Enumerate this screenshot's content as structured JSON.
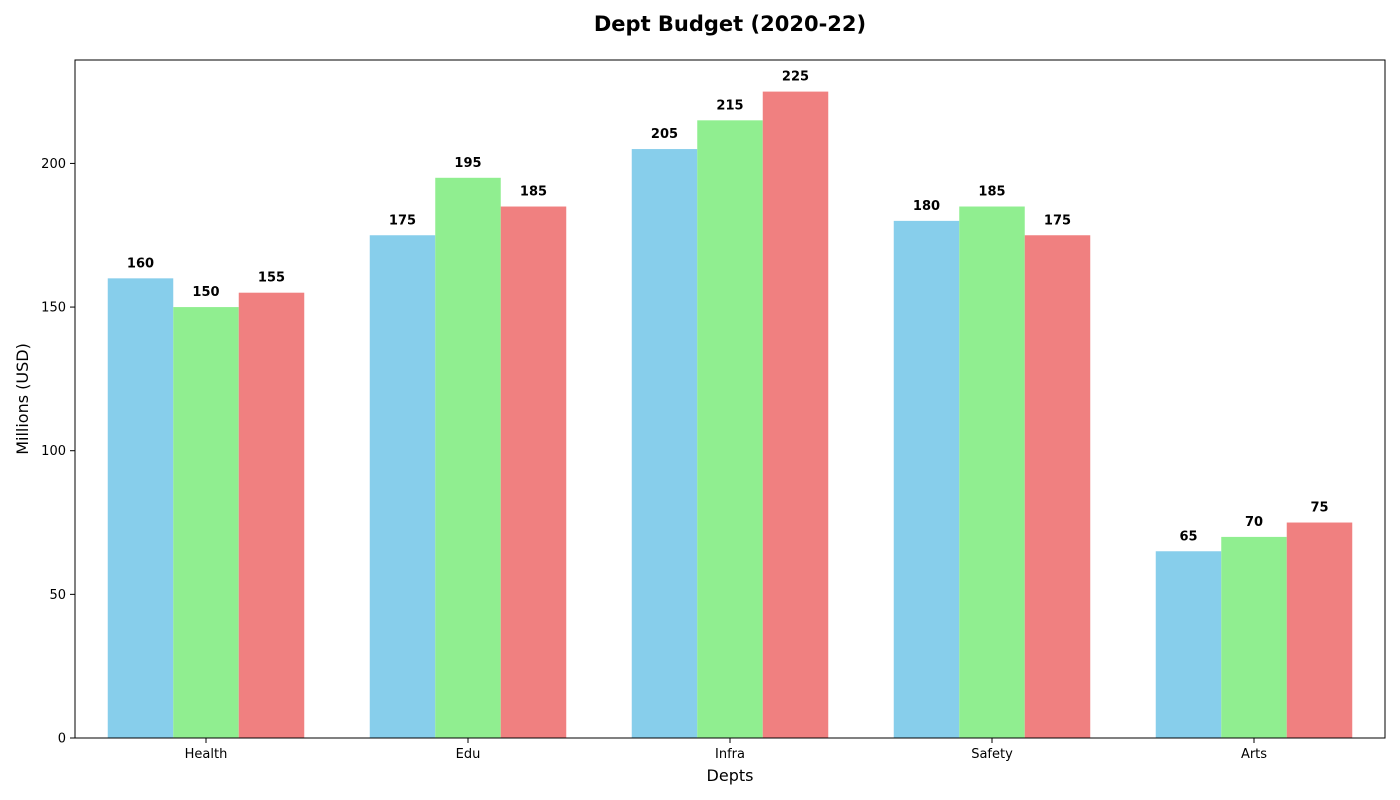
{
  "chart_data": {
    "type": "bar",
    "title": "Dept Budget (2020-22)",
    "xlabel": "Depts",
    "ylabel": "Millions (USD)",
    "categories": [
      "Health",
      "Edu",
      "Infra",
      "Safety",
      "Arts"
    ],
    "series": [
      {
        "values": [
          160,
          175,
          205,
          180,
          65
        ],
        "color": "#87CEEB"
      },
      {
        "values": [
          150,
          195,
          215,
          185,
          70
        ],
        "color": "#90EE90"
      },
      {
        "values": [
          155,
          185,
          225,
          175,
          75
        ],
        "color": "#F08080"
      }
    ],
    "ylim": [
      0,
      236
    ],
    "yticks": [
      0,
      50,
      100,
      150,
      200
    ],
    "grid": false,
    "legend": false,
    "data_labels": true
  }
}
